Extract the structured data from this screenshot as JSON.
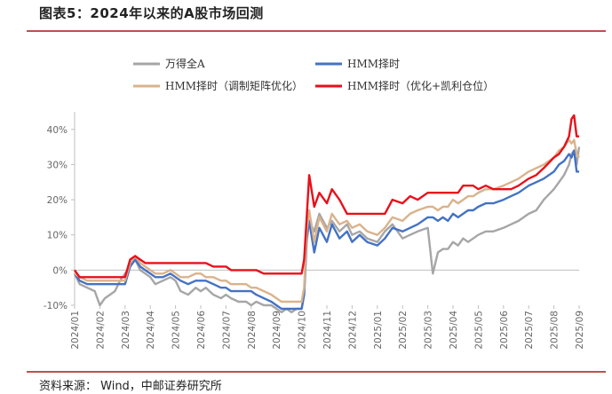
{
  "header": {
    "title": "图表5：2024年以来的A股市场回测"
  },
  "footer": {
    "source": "资料来源： Wind，中邮证券研究所"
  },
  "chart_data": {
    "type": "line",
    "ylim": [
      -10,
      45
    ],
    "yticks": [
      "-10%",
      "0%",
      "10%",
      "20%",
      "30%",
      "40%"
    ],
    "ytick_values": [
      -10,
      0,
      10,
      20,
      30,
      40
    ],
    "categories": [
      "2024/01",
      "2024/02",
      "2024/03",
      "2024/04",
      "2024/05",
      "2024/06",
      "2024/07",
      "2024/08",
      "2024/09",
      "2024/10",
      "2024/11",
      "2024/12",
      "2025/01",
      "2025/02",
      "2025/03",
      "2025/04",
      "2025/05",
      "2025/06",
      "2025/07",
      "2025/08",
      "2025/09"
    ],
    "legend_position": "top",
    "series": [
      {
        "name": "万得全A",
        "color": "#a6a6a6",
        "x": [
          0,
          0.2,
          0.5,
          0.8,
          1.0,
          1.2,
          1.4,
          1.6,
          1.8,
          2.0,
          2.2,
          2.4,
          2.6,
          2.8,
          3.0,
          3.2,
          3.5,
          3.8,
          4.0,
          4.2,
          4.5,
          4.8,
          5.0,
          5.2,
          5.5,
          5.8,
          6.0,
          6.2,
          6.5,
          6.8,
          7.0,
          7.2,
          7.5,
          7.8,
          8.0,
          8.2,
          8.4,
          8.6,
          8.8,
          9.0,
          9.1,
          9.2,
          9.3,
          9.5,
          9.7,
          10.0,
          10.2,
          10.5,
          10.8,
          11.0,
          11.3,
          11.6,
          12.0,
          12.3,
          12.6,
          13.0,
          13.3,
          13.6,
          14.0,
          14.2,
          14.4,
          14.6,
          14.8,
          15.0,
          15.2,
          15.4,
          15.6,
          15.8,
          16.0,
          16.3,
          16.6,
          17.0,
          17.3,
          17.6,
          18.0,
          18.3,
          18.6,
          19.0,
          19.2,
          19.4,
          19.6,
          19.7,
          19.8,
          19.9,
          20.0
        ],
        "values": [
          -1,
          -4,
          -5,
          -6,
          -10,
          -8,
          -7,
          -6,
          -3,
          -1,
          1,
          3,
          0,
          -1,
          -2,
          -4,
          -3,
          -2,
          -3,
          -6,
          -7,
          -5,
          -6,
          -5,
          -7,
          -8,
          -7,
          -8,
          -9,
          -9,
          -10,
          -9,
          -10,
          -10,
          -11,
          -12,
          -11,
          -12,
          -11,
          -11,
          -7,
          8,
          14,
          11,
          16,
          12,
          14,
          11,
          13,
          10,
          11,
          9,
          8,
          11,
          13,
          9,
          10,
          11,
          12,
          -1,
          5,
          6,
          6,
          8,
          7,
          9,
          8,
          9,
          10,
          11,
          11,
          12,
          13,
          14,
          16,
          17,
          20,
          23,
          25,
          27,
          30,
          33,
          34,
          30,
          35
        ]
      },
      {
        "name": "HMM择时",
        "color": "#4472c4",
        "x": [
          0,
          0.2,
          0.5,
          0.8,
          1.0,
          1.2,
          1.4,
          1.6,
          1.8,
          2.0,
          2.2,
          2.4,
          2.6,
          2.8,
          3.0,
          3.2,
          3.5,
          3.8,
          4.0,
          4.2,
          4.5,
          4.8,
          5.0,
          5.2,
          5.5,
          5.8,
          6.0,
          6.2,
          6.5,
          6.8,
          7.0,
          7.2,
          7.5,
          7.8,
          8.0,
          8.2,
          8.4,
          8.6,
          8.8,
          9.0,
          9.1,
          9.2,
          9.3,
          9.5,
          9.7,
          10.0,
          10.2,
          10.5,
          10.8,
          11.0,
          11.3,
          11.6,
          12.0,
          12.3,
          12.6,
          13.0,
          13.3,
          13.6,
          14.0,
          14.2,
          14.4,
          14.6,
          14.8,
          15.0,
          15.2,
          15.4,
          15.6,
          15.8,
          16.0,
          16.3,
          16.6,
          17.0,
          17.3,
          17.6,
          18.0,
          18.3,
          18.6,
          19.0,
          19.2,
          19.4,
          19.6,
          19.7,
          19.8,
          19.9,
          20.0
        ],
        "values": [
          -1,
          -3,
          -4,
          -4,
          -4,
          -4,
          -4,
          -4,
          -4,
          -4,
          1,
          3,
          1,
          0,
          -1,
          -2,
          -2,
          -1,
          -2,
          -3,
          -4,
          -3,
          -3,
          -3,
          -4,
          -5,
          -5,
          -6,
          -6,
          -6,
          -6,
          -7,
          -8,
          -9,
          -10,
          -11,
          -11,
          -11,
          -11,
          -11,
          -7,
          9,
          14,
          5,
          12,
          8,
          13,
          9,
          11,
          8,
          10,
          8,
          7,
          9,
          12,
          11,
          12,
          13,
          15,
          15,
          14,
          15,
          14,
          16,
          15,
          16,
          17,
          17,
          18,
          19,
          19,
          20,
          21,
          22,
          24,
          25,
          26,
          28,
          30,
          31,
          33,
          32,
          34,
          28,
          28
        ]
      },
      {
        "name": "HMM择时（调制矩阵优化）",
        "color": "#d9b38c",
        "x": [
          0,
          0.2,
          0.5,
          0.8,
          1.0,
          1.2,
          1.4,
          1.6,
          1.8,
          2.0,
          2.2,
          2.4,
          2.6,
          2.8,
          3.0,
          3.2,
          3.5,
          3.8,
          4.0,
          4.2,
          4.5,
          4.8,
          5.0,
          5.2,
          5.5,
          5.8,
          6.0,
          6.2,
          6.5,
          6.8,
          7.0,
          7.2,
          7.5,
          7.8,
          8.0,
          8.2,
          8.4,
          8.6,
          8.8,
          9.0,
          9.1,
          9.2,
          9.3,
          9.5,
          9.7,
          10.0,
          10.2,
          10.5,
          10.8,
          11.0,
          11.3,
          11.6,
          12.0,
          12.3,
          12.6,
          13.0,
          13.3,
          13.6,
          14.0,
          14.2,
          14.4,
          14.6,
          14.8,
          15.0,
          15.2,
          15.4,
          15.6,
          15.8,
          16.0,
          16.3,
          16.6,
          17.0,
          17.3,
          17.6,
          18.0,
          18.3,
          18.6,
          19.0,
          19.2,
          19.4,
          19.6,
          19.7,
          19.8,
          19.9,
          20.0
        ],
        "values": [
          -1,
          -2,
          -3,
          -3,
          -3,
          -3,
          -3,
          -3,
          -3,
          -3,
          2,
          4,
          2,
          1,
          0,
          -1,
          -1,
          0,
          -1,
          -2,
          -2,
          -1,
          -1,
          -2,
          -2,
          -3,
          -3,
          -4,
          -4,
          -4,
          -5,
          -5,
          -6,
          -7,
          -8,
          -9,
          -9,
          -9,
          -9,
          -9,
          -5,
          11,
          17,
          8,
          15,
          11,
          16,
          13,
          14,
          12,
          13,
          11,
          10,
          12,
          15,
          14,
          16,
          17,
          18,
          18,
          17,
          18,
          18,
          20,
          19,
          20,
          21,
          21,
          22,
          23,
          23,
          24,
          25,
          26,
          28,
          29,
          30,
          32,
          34,
          35,
          37,
          36,
          37,
          33,
          32
        ]
      },
      {
        "name": "HMM择时（优化+凯利仓位）",
        "color": "#e8101a",
        "x": [
          0,
          0.2,
          0.5,
          0.8,
          1.0,
          1.2,
          1.4,
          1.6,
          1.8,
          2.0,
          2.2,
          2.4,
          2.6,
          2.8,
          3.0,
          3.2,
          3.5,
          3.8,
          4.0,
          4.2,
          4.5,
          4.8,
          5.0,
          5.2,
          5.5,
          5.8,
          6.0,
          6.2,
          6.5,
          6.8,
          7.0,
          7.2,
          7.5,
          7.8,
          8.0,
          8.2,
          8.4,
          8.6,
          8.8,
          9.0,
          9.1,
          9.2,
          9.3,
          9.5,
          9.7,
          10.0,
          10.2,
          10.5,
          10.8,
          11.0,
          11.3,
          11.6,
          12.0,
          12.3,
          12.6,
          13.0,
          13.3,
          13.6,
          14.0,
          14.2,
          14.4,
          14.6,
          14.8,
          15.0,
          15.2,
          15.4,
          15.6,
          15.8,
          16.0,
          16.3,
          16.6,
          17.0,
          17.3,
          17.6,
          18.0,
          18.3,
          18.6,
          19.0,
          19.2,
          19.4,
          19.6,
          19.7,
          19.8,
          19.9,
          20.0
        ],
        "values": [
          0,
          -2,
          -2,
          -2,
          -2,
          -2,
          -2,
          -2,
          -2,
          -2,
          3,
          4,
          3,
          2,
          2,
          2,
          2,
          2,
          2,
          2,
          2,
          2,
          2,
          2,
          1,
          1,
          1,
          0,
          0,
          0,
          0,
          0,
          -1,
          -1,
          -1,
          -1,
          -1,
          -1,
          -1,
          -1,
          3,
          15,
          27,
          18,
          22,
          19,
          23,
          20,
          16,
          16,
          16,
          16,
          16,
          16,
          20,
          19,
          21,
          20,
          22,
          22,
          22,
          22,
          22,
          22,
          22,
          24,
          24,
          24,
          23,
          24,
          23,
          23,
          23,
          24,
          26,
          27,
          29,
          32,
          33,
          35,
          38,
          43,
          44,
          38,
          38
        ]
      }
    ]
  }
}
